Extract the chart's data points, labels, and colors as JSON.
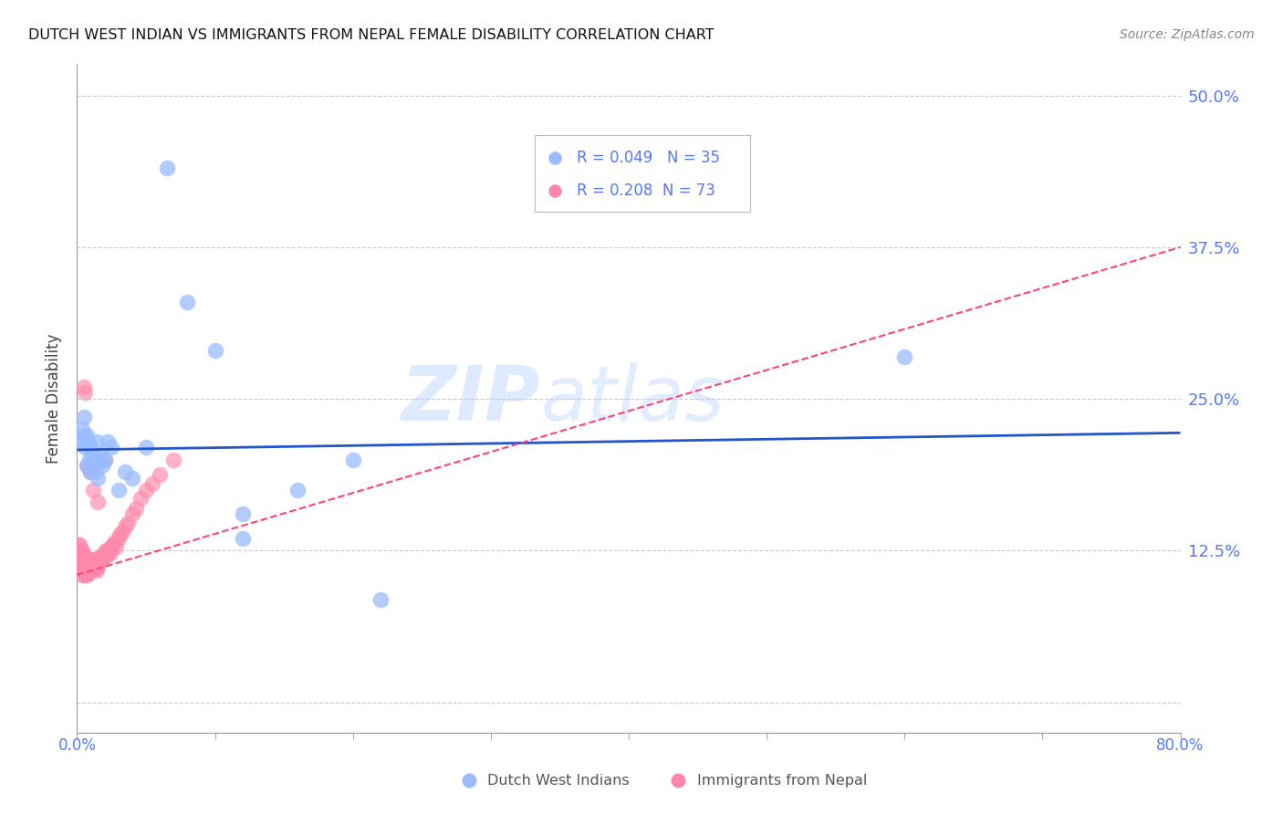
{
  "title": "DUTCH WEST INDIAN VS IMMIGRANTS FROM NEPAL FEMALE DISABILITY CORRELATION CHART",
  "source": "Source: ZipAtlas.com",
  "ylabel": "Female Disability",
  "yticks": [
    0.0,
    0.125,
    0.25,
    0.375,
    0.5
  ],
  "ytick_labels": [
    "",
    "12.5%",
    "25.0%",
    "37.5%",
    "50.0%"
  ],
  "xmin": 0.0,
  "xmax": 0.8,
  "ymin": -0.025,
  "ymax": 0.525,
  "watermark_part1": "ZIP",
  "watermark_part2": "atlas",
  "legend_blue_R": "R = 0.049",
  "legend_blue_N": "N = 35",
  "legend_pink_R": "R = 0.208",
  "legend_pink_N": "N = 73",
  "legend_label_blue": "Dutch West Indians",
  "legend_label_pink": "Immigrants from Nepal",
  "color_blue": "#99bbff",
  "color_pink": "#ff88aa",
  "color_blue_line": "#2255cc",
  "color_pink_line": "#ff4477",
  "color_blue_dark": "#3366ff",
  "color_axis_labels": "#5577ff",
  "blue_line_x": [
    0.0,
    0.8
  ],
  "blue_line_y": [
    0.208,
    0.222
  ],
  "pink_line_x": [
    0.0,
    0.8
  ],
  "pink_line_y": [
    0.105,
    0.375
  ],
  "blue_scatter_x": [
    0.003,
    0.004,
    0.005,
    0.005,
    0.006,
    0.007,
    0.007,
    0.008,
    0.009,
    0.01,
    0.01,
    0.011,
    0.012,
    0.013,
    0.014,
    0.015,
    0.016,
    0.017,
    0.018,
    0.02,
    0.022,
    0.025,
    0.03,
    0.035,
    0.04,
    0.05,
    0.065,
    0.08,
    0.1,
    0.12,
    0.16,
    0.2,
    0.22,
    0.6,
    0.12
  ],
  "blue_scatter_y": [
    0.215,
    0.225,
    0.22,
    0.235,
    0.21,
    0.22,
    0.195,
    0.215,
    0.2,
    0.21,
    0.19,
    0.205,
    0.2,
    0.19,
    0.215,
    0.185,
    0.205,
    0.2,
    0.195,
    0.2,
    0.215,
    0.21,
    0.175,
    0.19,
    0.185,
    0.21,
    0.44,
    0.33,
    0.29,
    0.155,
    0.175,
    0.2,
    0.085,
    0.285,
    0.135
  ],
  "pink_scatter_x": [
    0.001,
    0.001,
    0.001,
    0.002,
    0.002,
    0.002,
    0.003,
    0.003,
    0.003,
    0.004,
    0.004,
    0.004,
    0.004,
    0.005,
    0.005,
    0.005,
    0.005,
    0.006,
    0.006,
    0.006,
    0.007,
    0.007,
    0.007,
    0.008,
    0.008,
    0.008,
    0.009,
    0.009,
    0.01,
    0.01,
    0.01,
    0.011,
    0.011,
    0.012,
    0.012,
    0.013,
    0.013,
    0.014,
    0.014,
    0.015,
    0.015,
    0.016,
    0.017,
    0.018,
    0.019,
    0.02,
    0.021,
    0.022,
    0.023,
    0.024,
    0.025,
    0.026,
    0.027,
    0.028,
    0.03,
    0.031,
    0.033,
    0.035,
    0.037,
    0.04,
    0.043,
    0.046,
    0.05,
    0.055,
    0.06,
    0.07,
    0.005,
    0.006,
    0.008,
    0.01,
    0.012,
    0.015,
    0.02
  ],
  "pink_scatter_y": [
    0.13,
    0.125,
    0.12,
    0.13,
    0.12,
    0.11,
    0.125,
    0.115,
    0.11,
    0.125,
    0.115,
    0.11,
    0.105,
    0.12,
    0.115,
    0.11,
    0.105,
    0.12,
    0.115,
    0.108,
    0.118,
    0.112,
    0.105,
    0.118,
    0.112,
    0.106,
    0.116,
    0.11,
    0.118,
    0.113,
    0.108,
    0.115,
    0.11,
    0.118,
    0.112,
    0.116,
    0.11,
    0.115,
    0.109,
    0.118,
    0.112,
    0.116,
    0.12,
    0.118,
    0.122,
    0.12,
    0.125,
    0.122,
    0.126,
    0.123,
    0.128,
    0.13,
    0.132,
    0.128,
    0.135,
    0.138,
    0.14,
    0.145,
    0.148,
    0.155,
    0.16,
    0.168,
    0.175,
    0.18,
    0.188,
    0.2,
    0.26,
    0.255,
    0.195,
    0.19,
    0.175,
    0.165,
    0.2
  ]
}
